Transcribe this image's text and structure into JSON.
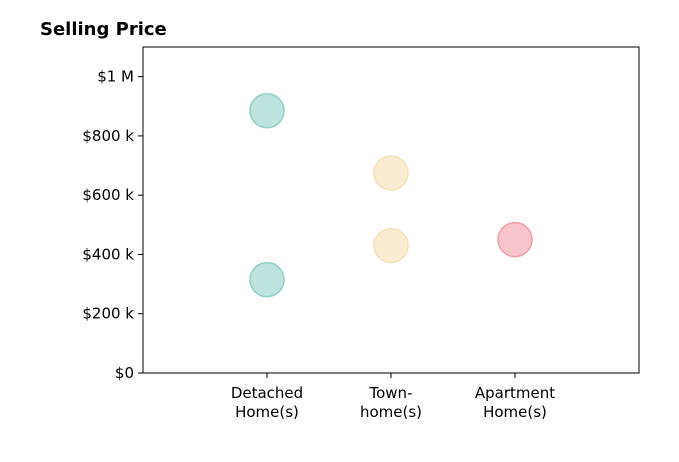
{
  "chart_data": {
    "type": "scatter",
    "title": "Selling Price",
    "xlabel": "",
    "ylabel": "",
    "categories": [
      {
        "id": "detached",
        "lines": [
          "Detached",
          "Home(s)"
        ],
        "color": "#8fd0c6"
      },
      {
        "id": "townhome",
        "lines": [
          "Town-",
          "home(s)"
        ],
        "color": "#f6e0b4"
      },
      {
        "id": "apartment",
        "lines": [
          "Apartment",
          "Home(s)"
        ],
        "color": "#f29ea6"
      }
    ],
    "xlim": [
      0,
      4
    ],
    "x_positions": [
      1,
      2,
      3
    ],
    "ylim": [
      0,
      1100000
    ],
    "yticks": [
      {
        "value": 0,
        "label": "$0"
      },
      {
        "value": 200000,
        "label": "$200 k"
      },
      {
        "value": 400000,
        "label": "$400 k"
      },
      {
        "value": 600000,
        "label": "$600 k"
      },
      {
        "value": 800000,
        "label": "$800 k"
      },
      {
        "value": 1000000,
        "label": "$1 M"
      }
    ],
    "points": [
      {
        "category": "detached",
        "value": 885000
      },
      {
        "category": "detached",
        "value": 315000
      },
      {
        "category": "townhome",
        "value": 675000
      },
      {
        "category": "townhome",
        "value": 430000
      },
      {
        "category": "apartment",
        "value": 450000
      }
    ],
    "grid": false,
    "legend": "none"
  }
}
